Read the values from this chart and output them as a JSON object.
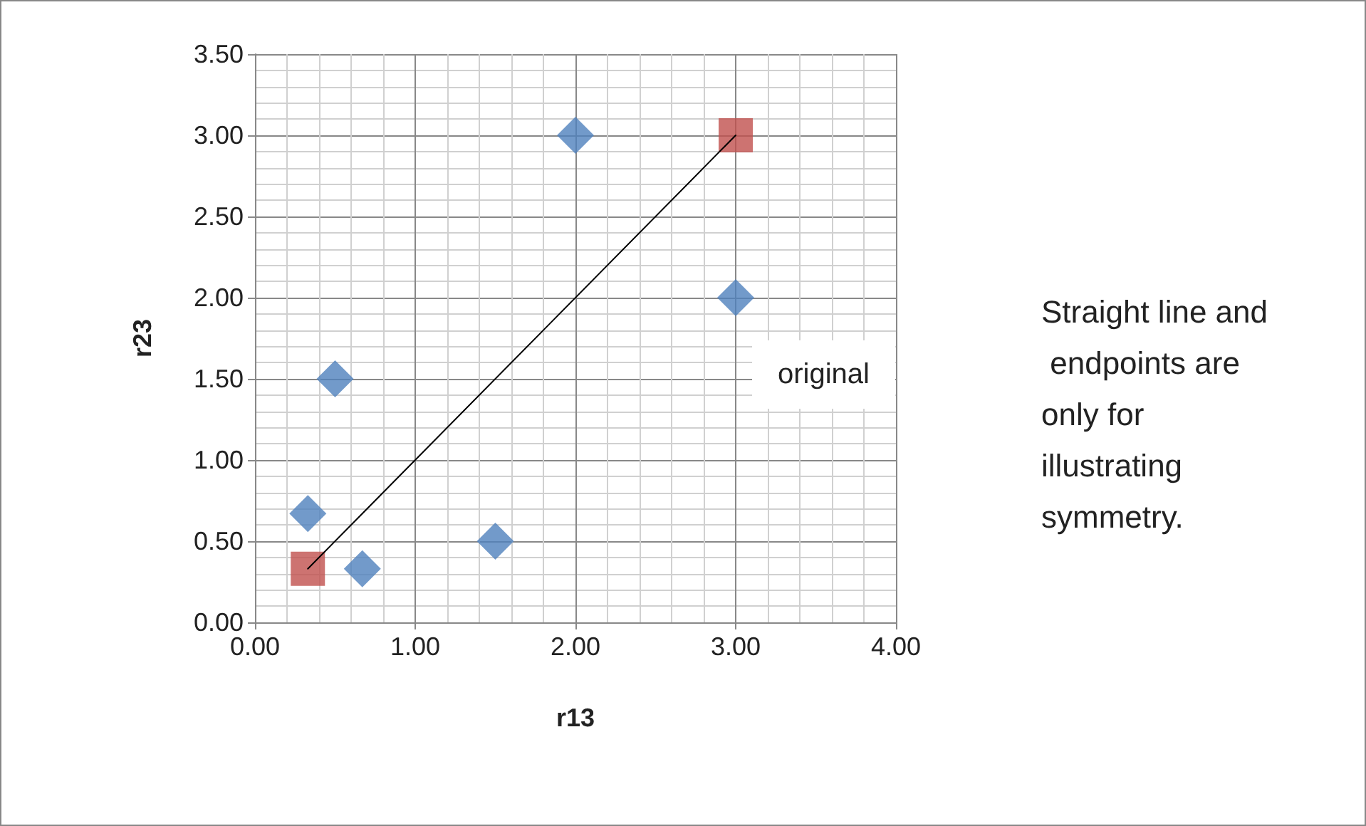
{
  "chart_data": {
    "type": "scatter",
    "xlabel": "r13",
    "ylabel": "r23",
    "xlim": [
      0,
      4
    ],
    "xticks": [
      {
        "value": 0,
        "label": "0.00"
      },
      {
        "value": 1,
        "label": "1.00"
      },
      {
        "value": 2,
        "label": "2.00"
      },
      {
        "value": 3,
        "label": "3.00"
      },
      {
        "value": 4,
        "label": "4.00"
      }
    ],
    "ylim": [
      0,
      3.5
    ],
    "yticks": [
      {
        "value": 0,
        "label": "0.00"
      },
      {
        "value": 0.5,
        "label": "0.50"
      },
      {
        "value": 1,
        "label": "1.00"
      },
      {
        "value": 1.5,
        "label": "1.50"
      },
      {
        "value": 2,
        "label": "2.00"
      },
      {
        "value": 2.5,
        "label": "2.50"
      },
      {
        "value": 3,
        "label": "3.00"
      },
      {
        "value": 3.5,
        "label": "3.50"
      }
    ],
    "grid": true,
    "series": [
      {
        "type": "line",
        "color": "#000000",
        "marker": "none",
        "line_style": "solid",
        "x": [
          0.33,
          3
        ],
        "values": [
          0.33,
          3
        ]
      },
      {
        "color": "#4f81bd",
        "marker": "diamond",
        "x": [
          2,
          3,
          0.5,
          0.33,
          0.67,
          1.5
        ],
        "values": [
          3,
          2,
          1.5,
          0.67,
          0.33,
          0.5
        ]
      },
      {
        "color": "#c0504d",
        "marker": "square",
        "x": [
          0.33,
          3
        ],
        "values": [
          0.33,
          3
        ]
      }
    ],
    "annotations": [
      "original",
      "Straight line and endpoints are only for illustrating symmetry."
    ]
  }
}
